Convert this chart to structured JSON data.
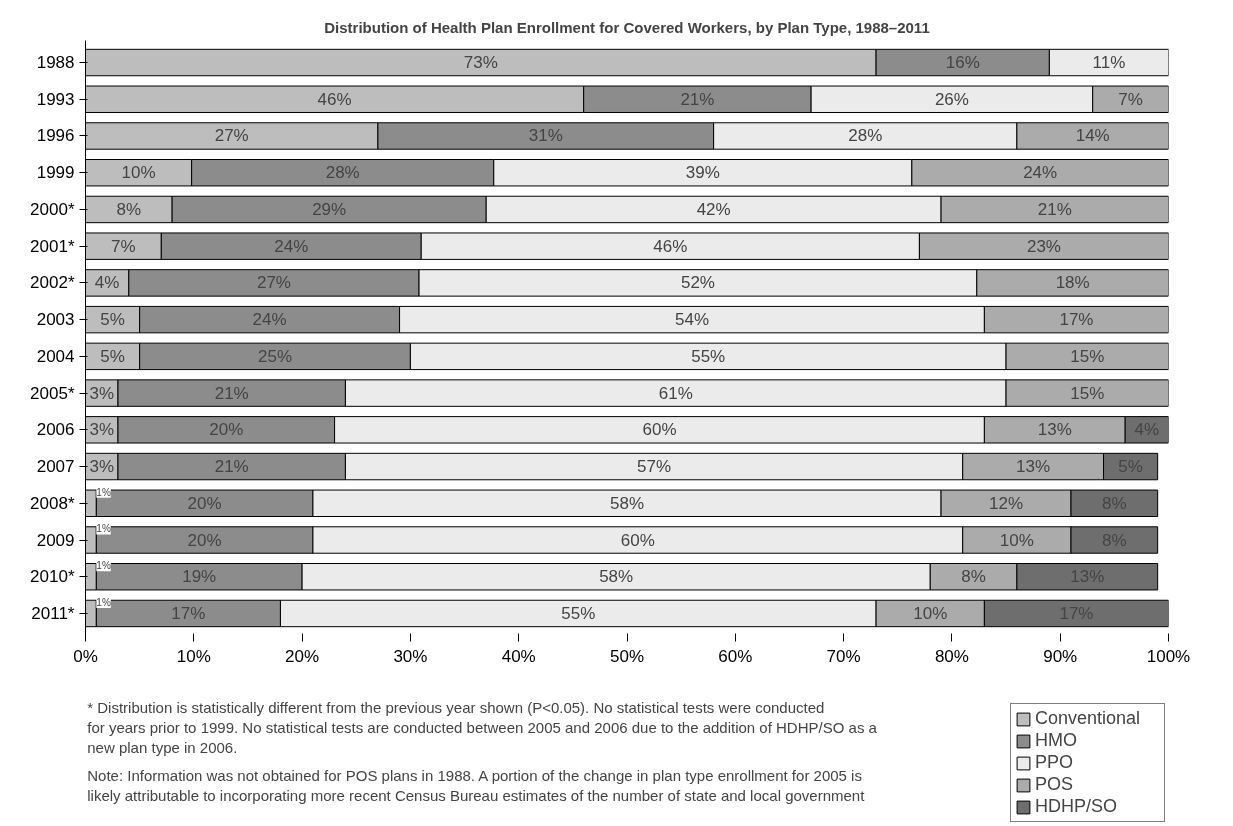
{
  "chart_data": {
    "type": "bar",
    "orientation": "horizontal",
    "stacked": true,
    "title": "Distribution of Health Plan Enrollment for Covered Workers, by Plan Type, 1988–2011",
    "categories": [
      "1988",
      "1993",
      "1996",
      "1999",
      "2000*",
      "2001*",
      "2002*",
      "2003",
      "2004",
      "2005*",
      "2006",
      "2007",
      "2008*",
      "2009",
      "2010*",
      "2011*"
    ],
    "series": [
      {
        "name": "Conventional",
        "color": "#bdbdbd",
        "values": [
          73,
          46,
          27,
          9.8,
          8,
          7,
          4,
          5,
          5,
          3,
          3,
          3,
          1,
          1,
          1,
          1
        ],
        "value_labels": [
          "73%",
          "46%",
          "27%",
          "10%",
          "8%",
          "7%",
          "4%",
          "5%",
          "5%",
          "3%",
          "3%",
          "3%",
          "1%",
          "1%",
          "1%",
          "1%"
        ]
      },
      {
        "name": "HMO",
        "color": "#8c8c8c",
        "values": [
          16,
          21,
          31,
          27.9,
          29,
          24,
          26.8,
          24,
          25,
          21,
          20,
          21,
          20,
          20,
          19,
          17
        ],
        "value_labels": [
          "16%",
          "21%",
          "31%",
          "28%",
          "29%",
          "24%",
          "27%",
          "24%",
          "25%",
          "21%",
          "20%",
          "21%",
          "20%",
          "20%",
          "19%",
          "17%"
        ]
      },
      {
        "name": "PPO",
        "color": "#ebebeb",
        "values": [
          11,
          26,
          28,
          38.6,
          42,
          46,
          51.5,
          54,
          55,
          61,
          60,
          57,
          58,
          60,
          58,
          55
        ],
        "value_labels": [
          "11%",
          "26%",
          "28%",
          "39%",
          "42%",
          "46%",
          "52%",
          "54%",
          "55%",
          "61%",
          "60%",
          "57%",
          "58%",
          "60%",
          "58%",
          "55%"
        ]
      },
      {
        "name": "POS",
        "color": "#ababab",
        "values": [
          null,
          7,
          14,
          23.7,
          21,
          23,
          17.7,
          17,
          15,
          15,
          13,
          13,
          12,
          10,
          8,
          10
        ],
        "value_labels": [
          null,
          "7%",
          "14%",
          "24%",
          "21%",
          "23%",
          "18%",
          "17%",
          "15%",
          "15%",
          "13%",
          "13%",
          "12%",
          "10%",
          "8%",
          "10%"
        ]
      },
      {
        "name": "HDHP/SO",
        "color": "#6e6e6e",
        "values": [
          null,
          null,
          null,
          null,
          null,
          null,
          null,
          null,
          null,
          null,
          4,
          5,
          8,
          8,
          13,
          17
        ],
        "value_labels": [
          null,
          null,
          null,
          null,
          null,
          null,
          null,
          null,
          null,
          null,
          "4%",
          "5%",
          "8%",
          "8%",
          "13%",
          "17%"
        ]
      }
    ],
    "xlim": [
      0,
      100
    ],
    "xticks": [
      {
        "value": 0,
        "label": "0%"
      },
      {
        "value": 10,
        "label": "10%"
      },
      {
        "value": 20,
        "label": "20%"
      },
      {
        "value": 30,
        "label": "30%"
      },
      {
        "value": 40,
        "label": "40%"
      },
      {
        "value": 50,
        "label": "50%"
      },
      {
        "value": 60,
        "label": "60%"
      },
      {
        "value": 70,
        "label": "70%"
      },
      {
        "value": 80,
        "label": "80%"
      },
      {
        "value": 90,
        "label": "90%"
      },
      {
        "value": 100,
        "label": "100%"
      }
    ],
    "grid": false,
    "legend": "bottom right",
    "annotations": [
      "* Distribution is statistically different from the previous year shown (P<0.05). No statistical tests were conducted for years prior to 1999. No statistical tests are conducted between 2005 and 2006 due to the addition of HDHP/SO as a new plan type in 2006.",
      "Note: Information was not obtained for POS plans in 1988. A portion of the change in plan type enrollment for 2005 is likely attributable to incorporating more recent Census Bureau estimates of the number of state and local government"
    ]
  }
}
